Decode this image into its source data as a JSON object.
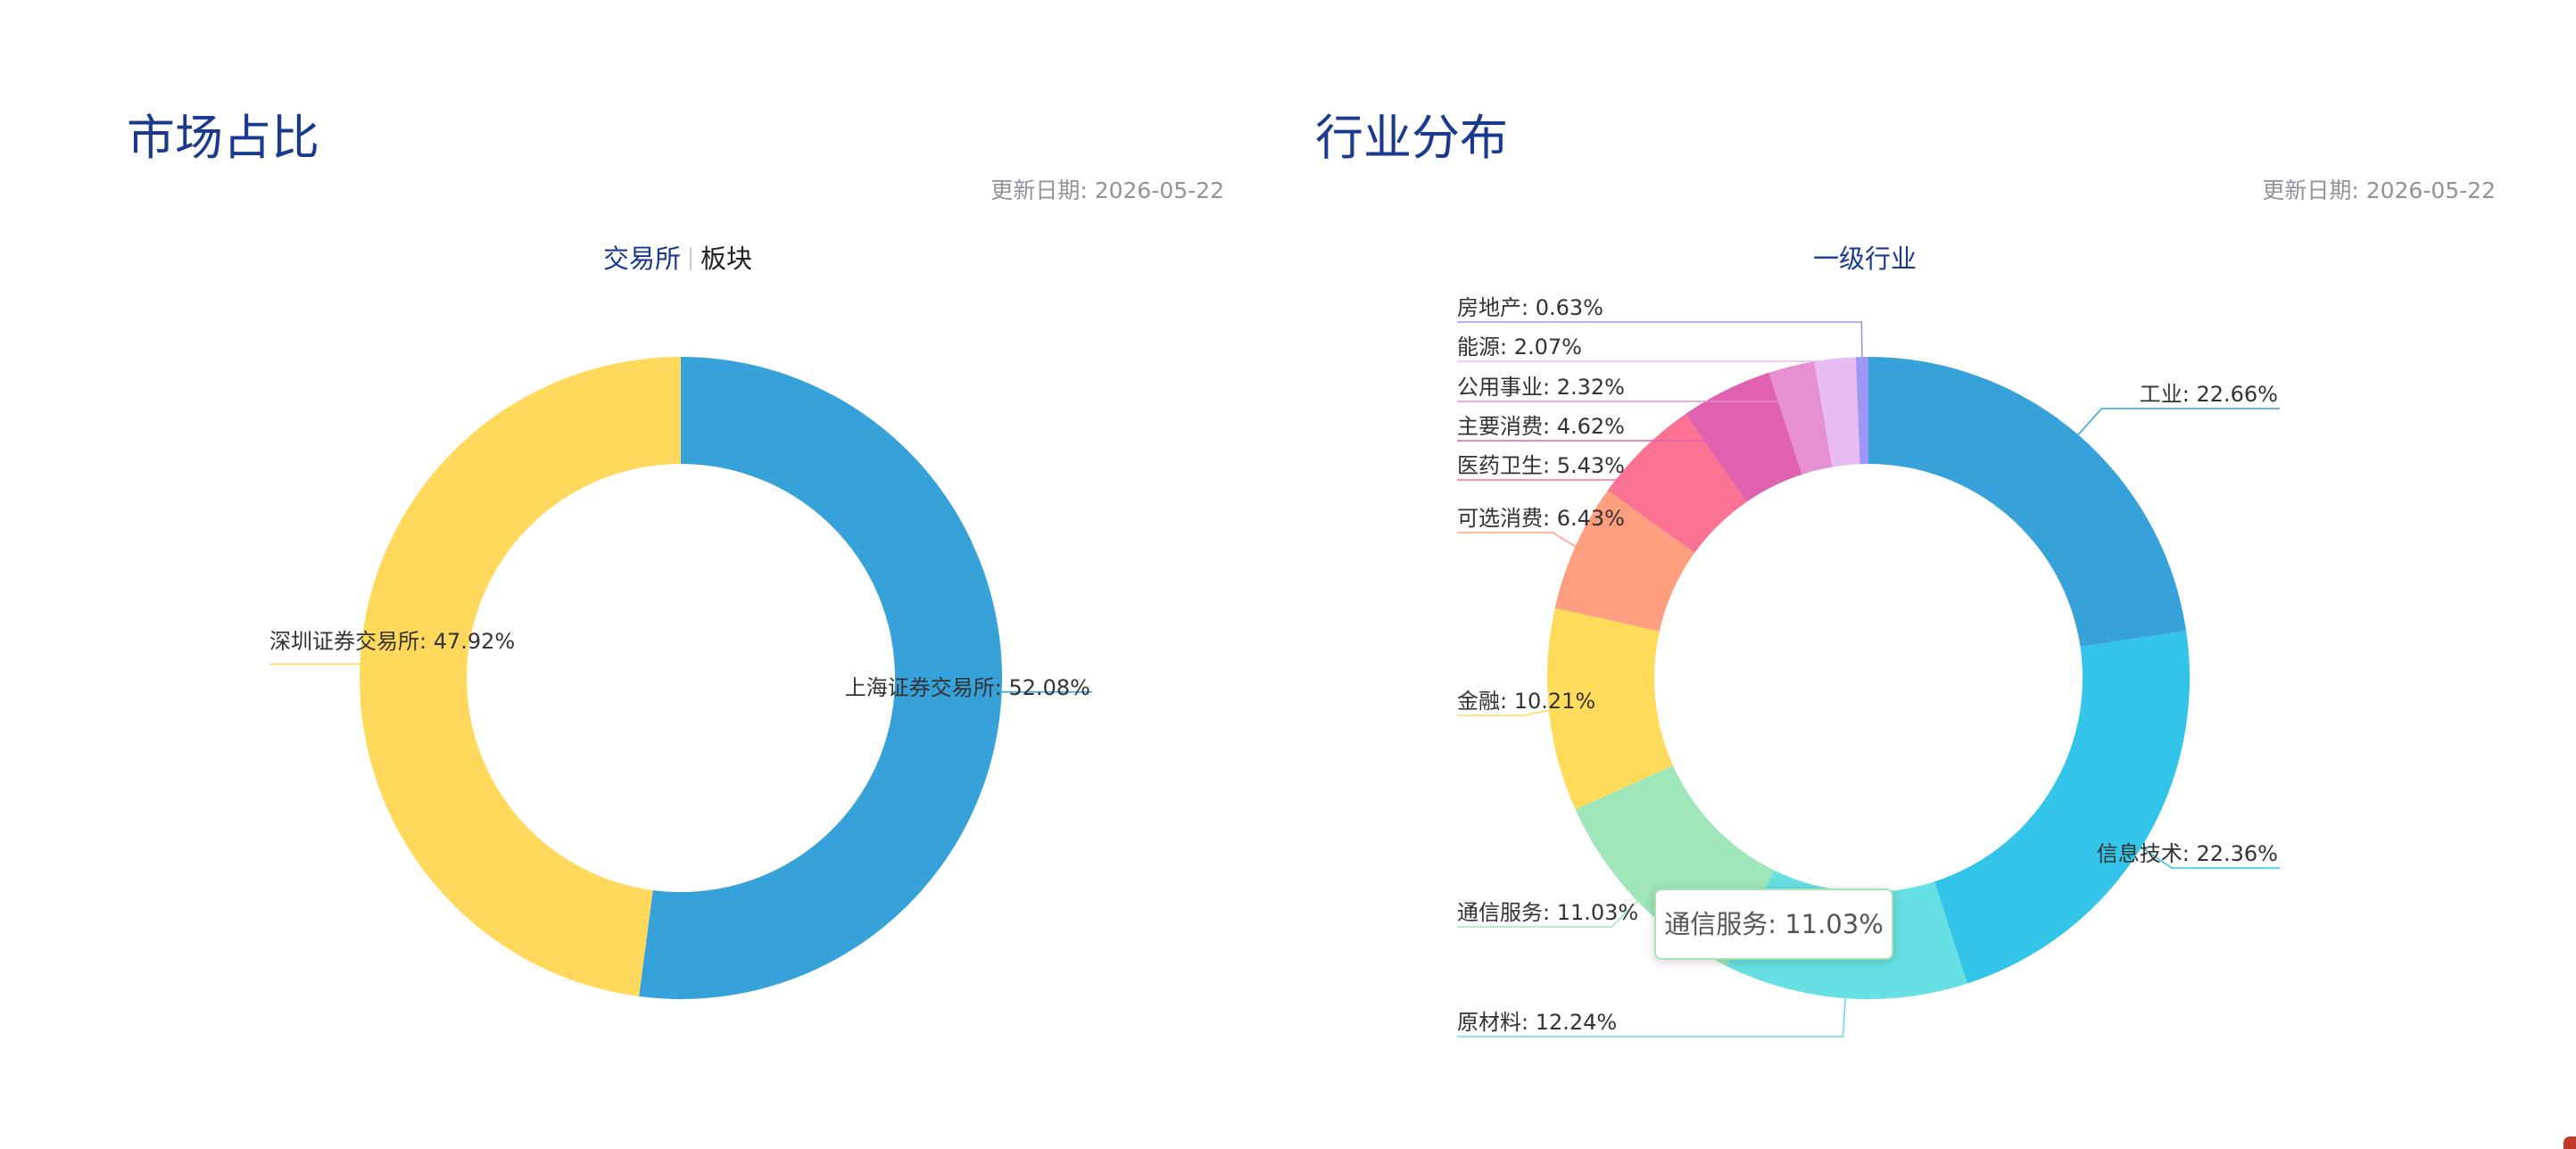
{
  "left_panel": {
    "title": "市场占比",
    "update_date": "更新日期: 2026-05-22",
    "tabs": [
      {
        "label": "交易所",
        "active": true
      },
      {
        "label": "板块",
        "active": false
      }
    ]
  },
  "right_panel": {
    "title": "行业分布",
    "update_date": "更新日期: 2026-05-22",
    "tabs": [
      {
        "label": "一级行业",
        "active": true
      }
    ],
    "tooltip": "通信服务: 11.03%"
  },
  "chart_data": [
    {
      "type": "pie",
      "donut": true,
      "title": "",
      "slices": [
        {
          "name": "上海证券交易所",
          "value": 52.08,
          "label": "上海证券交易所: 52.08%",
          "color": "#37a2da"
        },
        {
          "name": "深圳证券交易所",
          "value": 47.92,
          "label": "深圳证券交易所: 47.92%",
          "color": "#ffd85c"
        }
      ]
    },
    {
      "type": "pie",
      "donut": true,
      "title": "",
      "slices": [
        {
          "name": "工业",
          "value": 22.66,
          "label": "工业: 22.66%",
          "color": "#37a2da"
        },
        {
          "name": "信息技术",
          "value": 22.36,
          "label": "信息技术: 22.36%",
          "color": "#32c5e9"
        },
        {
          "name": "原材料",
          "value": 12.24,
          "label": "原材料: 12.24%",
          "color": "#67e0e3"
        },
        {
          "name": "通信服务",
          "value": 11.03,
          "label": "通信服务: 11.03%",
          "color": "#9fe6b8"
        },
        {
          "name": "金融",
          "value": 10.21,
          "label": "金融: 10.21%",
          "color": "#ffdb5c"
        },
        {
          "name": "可选消费",
          "value": 6.43,
          "label": "可选消费: 6.43%",
          "color": "#ff9f7f"
        },
        {
          "name": "医药卫生",
          "value": 5.43,
          "label": "医药卫生: 5.43%",
          "color": "#fb7293"
        },
        {
          "name": "主要消费",
          "value": 4.62,
          "label": "主要消费: 4.62%",
          "color": "#e062ae"
        },
        {
          "name": "公用事业",
          "value": 2.32,
          "label": "公用事业: 2.32%",
          "color": "#e690d1"
        },
        {
          "name": "能源",
          "value": 2.07,
          "label": "能源: 2.07%",
          "color": "#e7bcf3"
        },
        {
          "name": "房地产",
          "value": 0.63,
          "label": "房地产: 0.63%",
          "color": "#9d96f5"
        }
      ]
    }
  ]
}
